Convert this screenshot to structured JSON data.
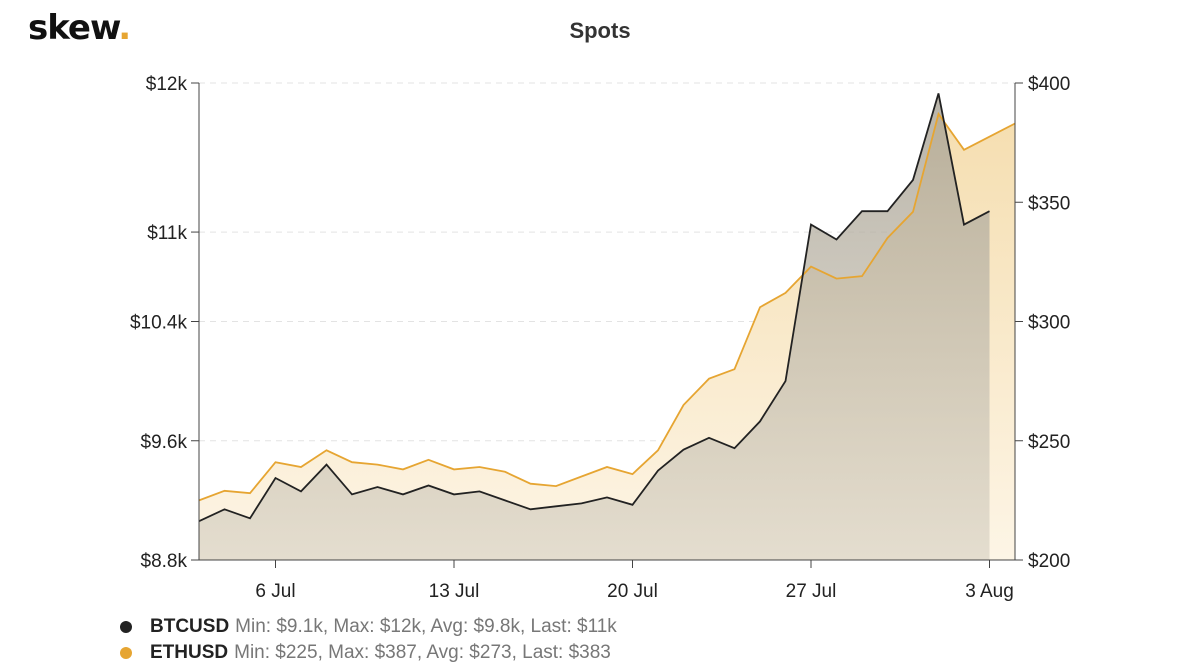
{
  "brand": {
    "name": "skew",
    "dot": "."
  },
  "chart_data": {
    "type": "area",
    "title": "Spots",
    "x_ticks": [
      "6 Jul",
      "13 Jul",
      "20 Jul",
      "27 Jul",
      "3 Aug"
    ],
    "x_tick_dates": [
      "2020-07-06",
      "2020-07-13",
      "2020-07-20",
      "2020-07-27",
      "2020-08-03"
    ],
    "x_range": [
      "2020-07-03",
      "2020-08-04"
    ],
    "y_left": {
      "ticks": [
        "$12k",
        "$11k",
        "$10.4k",
        "$9.6k",
        "$8.8k"
      ],
      "tick_values": [
        12000,
        11000,
        10400,
        9600,
        8800
      ],
      "range": [
        8800,
        12000
      ]
    },
    "y_right": {
      "ticks": [
        "$400",
        "$350",
        "$300",
        "$250",
        "$200"
      ],
      "tick_values": [
        400,
        350,
        300,
        250,
        200
      ],
      "range": [
        200,
        400
      ]
    },
    "grid": true,
    "legend_position": "bottom-left",
    "series": [
      {
        "name": "BTCUSD",
        "axis": "left",
        "color": "#222222",
        "fill": "#a8a294",
        "stats": "Min: $9.1k, Max: $12k, Avg: $9.8k, Last: $11k",
        "x": [
          "2020-07-03",
          "2020-07-04",
          "2020-07-05",
          "2020-07-06",
          "2020-07-07",
          "2020-07-08",
          "2020-07-09",
          "2020-07-10",
          "2020-07-11",
          "2020-07-12",
          "2020-07-13",
          "2020-07-14",
          "2020-07-15",
          "2020-07-16",
          "2020-07-17",
          "2020-07-18",
          "2020-07-19",
          "2020-07-20",
          "2020-07-21",
          "2020-07-22",
          "2020-07-23",
          "2020-07-24",
          "2020-07-25",
          "2020-07-26",
          "2020-07-27",
          "2020-07-28",
          "2020-07-29",
          "2020-07-30",
          "2020-07-31",
          "2020-08-01",
          "2020-08-02",
          "2020-08-03"
        ],
        "y": [
          9060,
          9140,
          9080,
          9350,
          9260,
          9440,
          9240,
          9290,
          9240,
          9300,
          9240,
          9260,
          9200,
          9140,
          9160,
          9180,
          9220,
          9170,
          9400,
          9540,
          9620,
          9550,
          9730,
          10000,
          11050,
          10950,
          11140,
          11140,
          11350,
          11930,
          11050,
          11140
        ]
      },
      {
        "name": "ETHUSD",
        "axis": "right",
        "color": "#e6a532",
        "fill": "#f5deb0",
        "stats": "Min: $225, Max: $387, Avg: $273, Last: $383",
        "x": [
          "2020-07-03",
          "2020-07-04",
          "2020-07-05",
          "2020-07-06",
          "2020-07-07",
          "2020-07-08",
          "2020-07-09",
          "2020-07-10",
          "2020-07-11",
          "2020-07-12",
          "2020-07-13",
          "2020-07-14",
          "2020-07-15",
          "2020-07-16",
          "2020-07-17",
          "2020-07-18",
          "2020-07-19",
          "2020-07-20",
          "2020-07-21",
          "2020-07-22",
          "2020-07-23",
          "2020-07-24",
          "2020-07-25",
          "2020-07-26",
          "2020-07-27",
          "2020-07-28",
          "2020-07-29",
          "2020-07-30",
          "2020-07-31",
          "2020-08-01",
          "2020-08-02",
          "2020-08-04"
        ],
        "y": [
          225,
          229,
          228,
          241,
          239,
          246,
          241,
          240,
          238,
          242,
          238,
          239,
          237,
          232,
          231,
          235,
          239,
          236,
          246,
          265,
          276,
          280,
          306,
          312,
          323,
          318,
          319,
          335,
          346,
          387,
          372,
          383
        ]
      }
    ]
  }
}
